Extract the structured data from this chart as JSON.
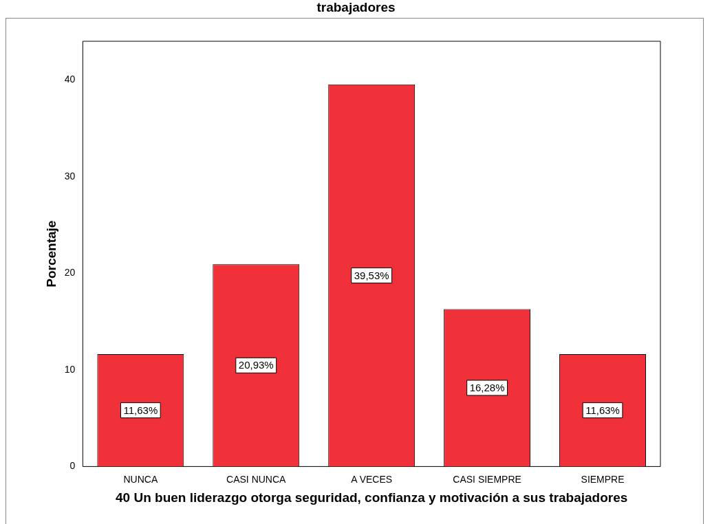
{
  "chart_data": {
    "type": "bar",
    "title": "trabajadores",
    "xlabel": "40 Un buen liderazgo otorga seguridad, confianza y motivación a sus trabajadores",
    "ylabel": "Porcentaje",
    "categories": [
      "NUNCA",
      "CASI NUNCA",
      "A VECES",
      "CASI SIEMPRE",
      "SIEMPRE"
    ],
    "values": [
      11.63,
      20.93,
      39.53,
      16.28,
      11.63
    ],
    "value_labels": [
      "11,63%",
      "20,93%",
      "39,53%",
      "16,28%",
      "11,63%"
    ],
    "color": "#f0313a",
    "ylim": [
      0,
      44
    ],
    "yticks": [
      0,
      10,
      20,
      30,
      40
    ],
    "grid": false,
    "legend": false
  }
}
